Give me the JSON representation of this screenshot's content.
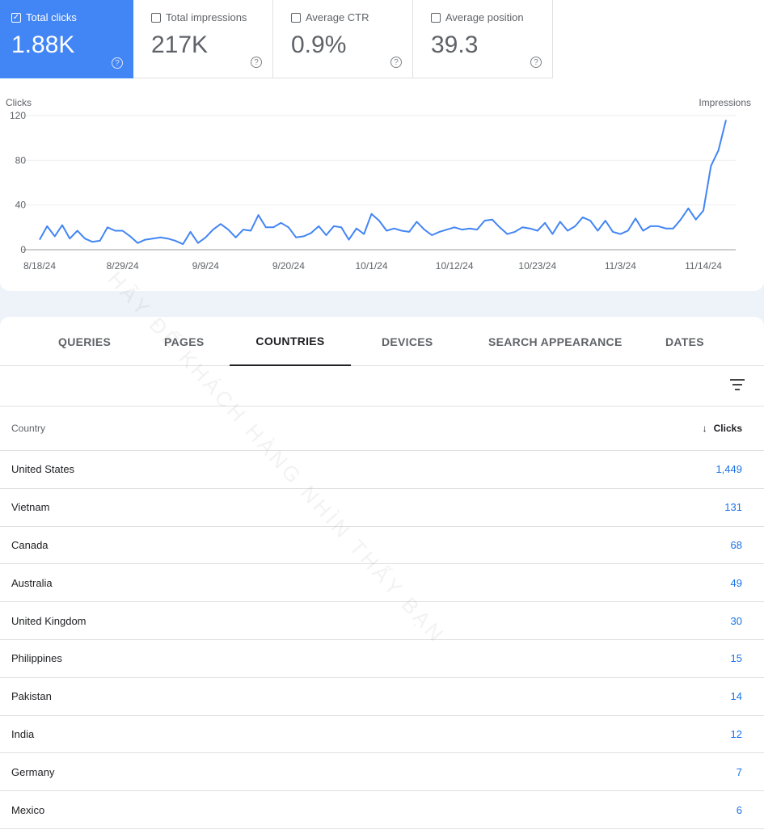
{
  "metrics": [
    {
      "label": "Total clicks",
      "value": "1.88K",
      "checked": true
    },
    {
      "label": "Total impressions",
      "value": "217K",
      "checked": false
    },
    {
      "label": "Average CTR",
      "value": "0.9%",
      "checked": false
    },
    {
      "label": "Average position",
      "value": "39.3",
      "checked": false
    }
  ],
  "chart_data": {
    "type": "line",
    "ylabel": "Clicks",
    "y2label": "Impressions",
    "ylim": [
      0,
      120
    ],
    "yticks": [
      0,
      40,
      80,
      120
    ],
    "xticks": [
      "8/18/24",
      "8/29/24",
      "9/9/24",
      "9/20/24",
      "10/1/24",
      "10/12/24",
      "10/23/24",
      "11/3/24",
      "11/14/24"
    ],
    "x_start": "8/18/24",
    "x_end": "11/17/24",
    "color": "#4285f4",
    "grid": true,
    "values": [
      9,
      21,
      12,
      22,
      10,
      17,
      10,
      7,
      8,
      20,
      17,
      17,
      12,
      6,
      9,
      10,
      11,
      10,
      8,
      5,
      16,
      6,
      11,
      18,
      23,
      18,
      11,
      18,
      17,
      31,
      20,
      20,
      24,
      20,
      11,
      12,
      15,
      21,
      13,
      21,
      20,
      9,
      19,
      14,
      32,
      26,
      17,
      19,
      17,
      16,
      25,
      18,
      13,
      16,
      18,
      20,
      18,
      19,
      18,
      26,
      27,
      20,
      14,
      16,
      20,
      19,
      17,
      24,
      14,
      25,
      17,
      21,
      29,
      26,
      17,
      26,
      16,
      14,
      17,
      28,
      17,
      21,
      21,
      19,
      19,
      27,
      37,
      27,
      35,
      75,
      89,
      116
    ]
  },
  "tabs": [
    {
      "label": "QUERIES"
    },
    {
      "label": "PAGES"
    },
    {
      "label": "COUNTRIES",
      "active": true
    },
    {
      "label": "DEVICES"
    },
    {
      "label": "SEARCH APPEARANCE"
    },
    {
      "label": "DATES"
    }
  ],
  "table": {
    "col_country": "Country",
    "col_clicks": "Clicks",
    "sort_icon": "arrow-down",
    "rows": [
      {
        "country": "United States",
        "clicks": "1,449"
      },
      {
        "country": "Vietnam",
        "clicks": "131"
      },
      {
        "country": "Canada",
        "clicks": "68"
      },
      {
        "country": "Australia",
        "clicks": "49"
      },
      {
        "country": "United Kingdom",
        "clicks": "30"
      },
      {
        "country": "Philippines",
        "clicks": "15"
      },
      {
        "country": "Pakistan",
        "clicks": "14"
      },
      {
        "country": "India",
        "clicks": "12"
      },
      {
        "country": "Germany",
        "clicks": "7"
      },
      {
        "country": "Mexico",
        "clicks": "6"
      }
    ]
  },
  "watermark": "HÃY ĐỂ KHÁCH HÀNG NHÌN THẤY BẠN"
}
